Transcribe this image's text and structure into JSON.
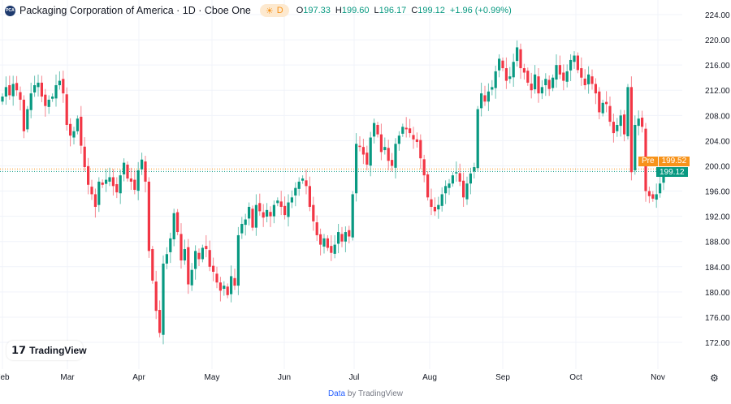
{
  "header": {
    "logo_text": "PCA",
    "title": "Packaging Corporation of America · 1D · Cboe One",
    "session_badge": "D",
    "session_icon": "sun-icon",
    "ohlc": {
      "o_label": "O",
      "o": "197.33",
      "h_label": "H",
      "h": "199.60",
      "l_label": "L",
      "l": "196.17",
      "c_label": "C",
      "c": "199.12",
      "change": "+1.96 (+0.99%)"
    }
  },
  "price_labels": {
    "pre_tag": "Pre",
    "pre_price": "199.52",
    "last_price": "199.12",
    "pre_color": "#f7931a",
    "last_color": "#089981"
  },
  "branding": {
    "tradingview": "TradingView"
  },
  "footer": {
    "data_link": "Data",
    "by_text": "by TradingView"
  },
  "settings_icon": "gear-icon",
  "chart_data": {
    "type": "candlestick",
    "title": "",
    "ylim": [
      170.5,
      225.5
    ],
    "y_ticks": [
      "224.00",
      "220.00",
      "216.00",
      "212.00",
      "208.00",
      "204.00",
      "200.00",
      "196.00",
      "192.00",
      "188.00",
      "184.00",
      "180.00",
      "176.00",
      "172.00"
    ],
    "x_ticks": [
      "Feb",
      "Mar",
      "Apr",
      "May",
      "Jun",
      "Jul",
      "Aug",
      "Sep",
      "Oct",
      "Nov"
    ],
    "grid": true,
    "colors": {
      "up": "#089981",
      "down": "#f23645"
    },
    "closes": [
      211,
      212.5,
      211.2,
      213,
      212,
      210.5,
      205.5,
      209,
      211.5,
      212.8,
      213.2,
      211,
      209.5,
      210.5,
      211,
      212.8,
      213.5,
      211.5,
      206.5,
      204.8,
      205.5,
      207.5,
      203.2,
      199.8,
      197,
      195.5,
      193.5,
      197.5,
      197,
      197.8,
      198.2,
      196.8,
      195.8,
      198.5,
      200.5,
      198,
      197.5,
      196.2,
      199.3,
      201,
      197.5,
      186.5,
      181.8,
      177,
      173.5,
      184.5,
      186,
      188.5,
      192.5,
      189.5,
      185,
      186.8,
      181.2,
      183.5,
      186.5,
      185.2,
      187,
      186.8,
      184,
      183.2,
      181.5,
      180.2,
      181,
      179.5,
      182.5,
      181,
      189,
      190.8,
      191.5,
      193.5,
      190.2,
      193.8,
      192.8,
      191.8,
      193,
      192,
      193.8,
      194.5,
      193.5,
      192.2,
      194.2,
      195,
      196.5,
      197.5,
      198,
      196.8,
      193.5,
      191.2,
      189,
      187.5,
      188.5,
      187,
      186.2,
      187.5,
      189.5,
      188,
      189.5,
      188.8,
      195.5,
      203.5,
      203,
      201.8,
      200.2,
      204.5,
      206.8,
      205,
      202.2,
      203,
      200.8,
      200,
      203.5,
      204.8,
      206.2,
      205.8,
      205.2,
      204.2,
      203.8,
      201.2,
      198.5,
      195,
      193.5,
      192.8,
      193.8,
      195.5,
      196.8,
      197.2,
      198.5,
      199,
      197.5,
      195,
      197.2,
      198.8,
      199.8,
      209,
      211.5,
      210.2,
      211.8,
      212.5,
      215,
      217,
      215.5,
      213.5,
      214.2,
      216.5,
      218.8,
      215.5,
      214.8,
      213.2,
      212,
      214.5,
      211.5,
      212.5,
      213.8,
      212.2,
      214,
      216,
      214.5,
      213.5,
      215,
      216.8,
      217.5,
      215.2,
      214,
      212.8,
      214.5,
      213,
      211.5,
      208.5,
      210,
      209.8,
      207,
      205.2,
      206.5,
      208,
      205,
      212.5,
      199,
      206.5,
      207.5,
      206.2,
      196,
      195.2,
      194.8,
      195.5,
      197.2,
      199.12
    ],
    "last_open": 197.33,
    "last_high": 199.6,
    "last_low": 196.17,
    "pre_market": 199.52
  }
}
